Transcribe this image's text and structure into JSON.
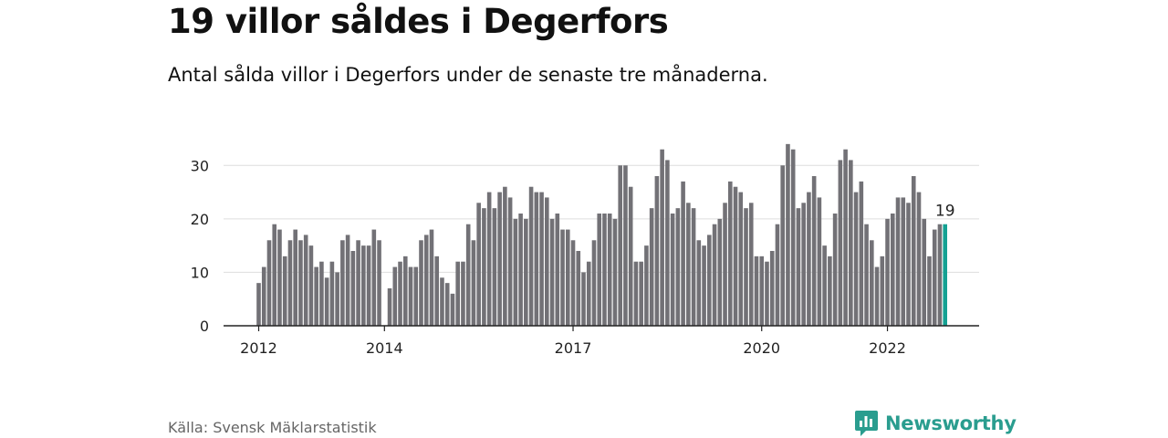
{
  "title": "19 villor såldes i Degerfors",
  "subtitle": "Antal sålda villor i Degerfors under de senaste tre månaderna.",
  "source": "Källa: Svensk Mäklarstatistik",
  "brand": "Newsworthy",
  "colors": {
    "bar": "#727176",
    "highlight": "#15a193",
    "brand": "#2a9d8f",
    "grid": "#dddddd",
    "axis": "#222222"
  },
  "chart_data": {
    "type": "bar",
    "ylim": [
      0,
      35
    ],
    "yticks": [
      0,
      10,
      20,
      30
    ],
    "xticks": [
      {
        "label": "2012",
        "index": 0
      },
      {
        "label": "2014",
        "index": 24
      },
      {
        "label": "2017",
        "index": 60
      },
      {
        "label": "2020",
        "index": 96
      },
      {
        "label": "2022",
        "index": 120
      }
    ],
    "highlight_label": "19",
    "values": [
      8,
      11,
      16,
      19,
      18,
      13,
      16,
      18,
      16,
      17,
      15,
      11,
      12,
      9,
      12,
      10,
      16,
      17,
      14,
      16,
      15,
      15,
      18,
      16,
      0,
      7,
      11,
      12,
      13,
      11,
      11,
      16,
      17,
      18,
      13,
      9,
      8,
      6,
      12,
      12,
      19,
      16,
      23,
      22,
      25,
      22,
      25,
      26,
      24,
      20,
      21,
      20,
      26,
      25,
      25,
      24,
      20,
      21,
      18,
      18,
      16,
      14,
      10,
      12,
      16,
      21,
      21,
      21,
      20,
      30,
      30,
      26,
      12,
      12,
      15,
      22,
      28,
      33,
      31,
      21,
      22,
      27,
      23,
      22,
      16,
      15,
      17,
      19,
      20,
      23,
      27,
      26,
      25,
      22,
      23,
      13,
      13,
      12,
      14,
      19,
      30,
      34,
      33,
      22,
      23,
      25,
      28,
      24,
      15,
      13,
      21,
      31,
      33,
      31,
      25,
      27,
      19,
      16,
      11,
      13,
      20,
      21,
      24,
      24,
      23,
      28,
      25,
      20,
      13,
      18,
      19,
      19
    ]
  }
}
